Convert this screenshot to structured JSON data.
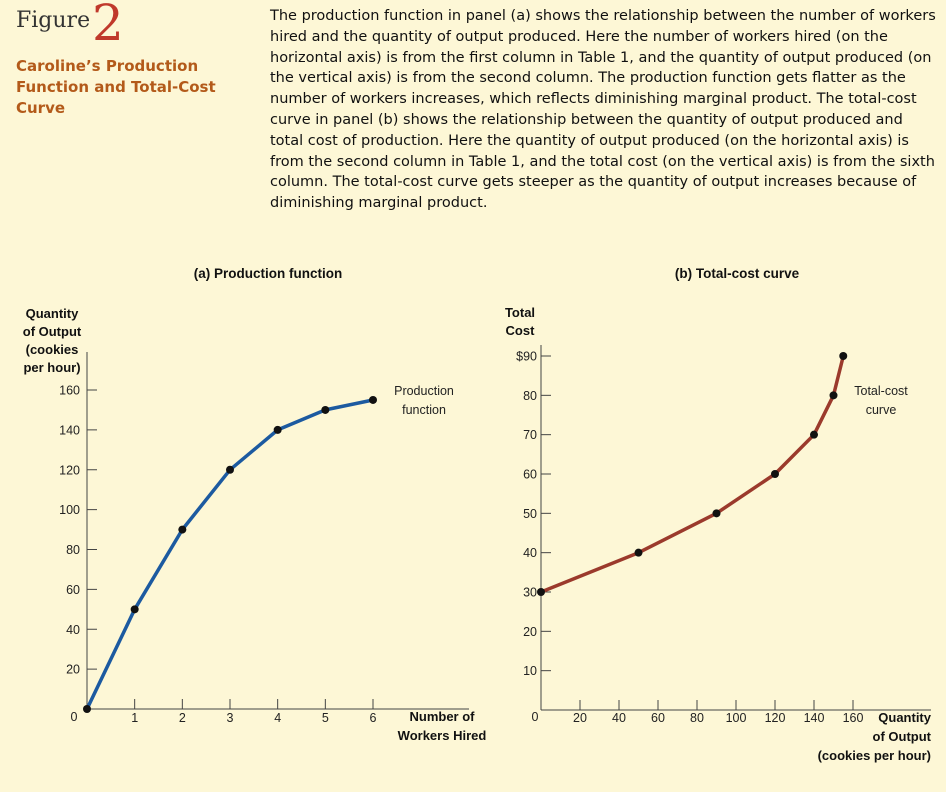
{
  "figure": {
    "word": "Figure",
    "number": "2",
    "title_lines": [
      "Caroline’s Production",
      "Function and Total-Cost",
      "Curve"
    ],
    "caption": "The production function in panel (a) shows the relationship between the number of workers hired and the quantity of output produced. Here the number of workers hired (on the horizontal axis) is from the first column in Table 1, and the quantity of output produced (on the vertical axis) is from the second column. The production function gets flatter as the number of workers increases, which reflects diminishing marginal product. The total-cost curve in panel (b) shows the relationship between the quantity of output produced and total cost of production. Here the quantity of output produced (on the horizontal axis) is from the second column in Table 1, and the total cost (on the vertical axis) is from the sixth column. The total-cost curve gets steeper as the quantity of output increases because of diminishing marginal product."
  },
  "colors": {
    "background": "#fdf7d6",
    "panel_a_line": "#1c5aa0",
    "panel_b_line": "#9b3a2c",
    "marker": "#111111",
    "axis": "#444444"
  },
  "chart_data": [
    {
      "type": "line",
      "title": "(a) Production function",
      "ylabel_lines": [
        "Quantity",
        "of Output",
        "(cookies",
        "per hour)"
      ],
      "xlabel_lines": [
        "Number of",
        "Workers Hired"
      ],
      "curve_label_lines": [
        "Production",
        "function"
      ],
      "xlim": [
        0,
        6
      ],
      "ylim": [
        0,
        160
      ],
      "x_ticks": [
        0,
        1,
        2,
        3,
        4,
        5,
        6
      ],
      "x_tick_labels": [
        "0",
        "1",
        "2",
        "3",
        "4",
        "5",
        "6"
      ],
      "y_ticks": [
        20,
        40,
        60,
        80,
        100,
        120,
        140,
        160
      ],
      "y_tick_labels": [
        "20",
        "40",
        "60",
        "80",
        "100",
        "120",
        "140",
        "160"
      ],
      "x": [
        0,
        1,
        2,
        3,
        4,
        5,
        6
      ],
      "y": [
        0,
        50,
        90,
        120,
        140,
        150,
        155
      ],
      "markers": true,
      "grid": false
    },
    {
      "type": "line",
      "title": "(b) Total-cost curve",
      "ylabel_lines": [
        "Total",
        "Cost"
      ],
      "xlabel_lines": [
        "Quantity",
        "of Output",
        "(cookies per hour)"
      ],
      "curve_label_lines": [
        "Total-cost",
        "curve"
      ],
      "xlim": [
        0,
        160
      ],
      "ylim": [
        0,
        90
      ],
      "x_ticks": [
        0,
        20,
        40,
        60,
        80,
        100,
        120,
        140,
        160
      ],
      "x_tick_labels": [
        "0",
        "20",
        "40",
        "60",
        "80",
        "100",
        "120",
        "140",
        "160"
      ],
      "y_ticks": [
        10,
        20,
        30,
        40,
        50,
        60,
        70,
        80,
        90
      ],
      "y_tick_labels": [
        "10",
        "20",
        "30",
        "40",
        "50",
        "60",
        "70",
        "80",
        "$90"
      ],
      "x": [
        0,
        50,
        90,
        120,
        140,
        150,
        155
      ],
      "y": [
        30,
        40,
        50,
        60,
        70,
        80,
        90
      ],
      "markers": true,
      "grid": false
    }
  ]
}
